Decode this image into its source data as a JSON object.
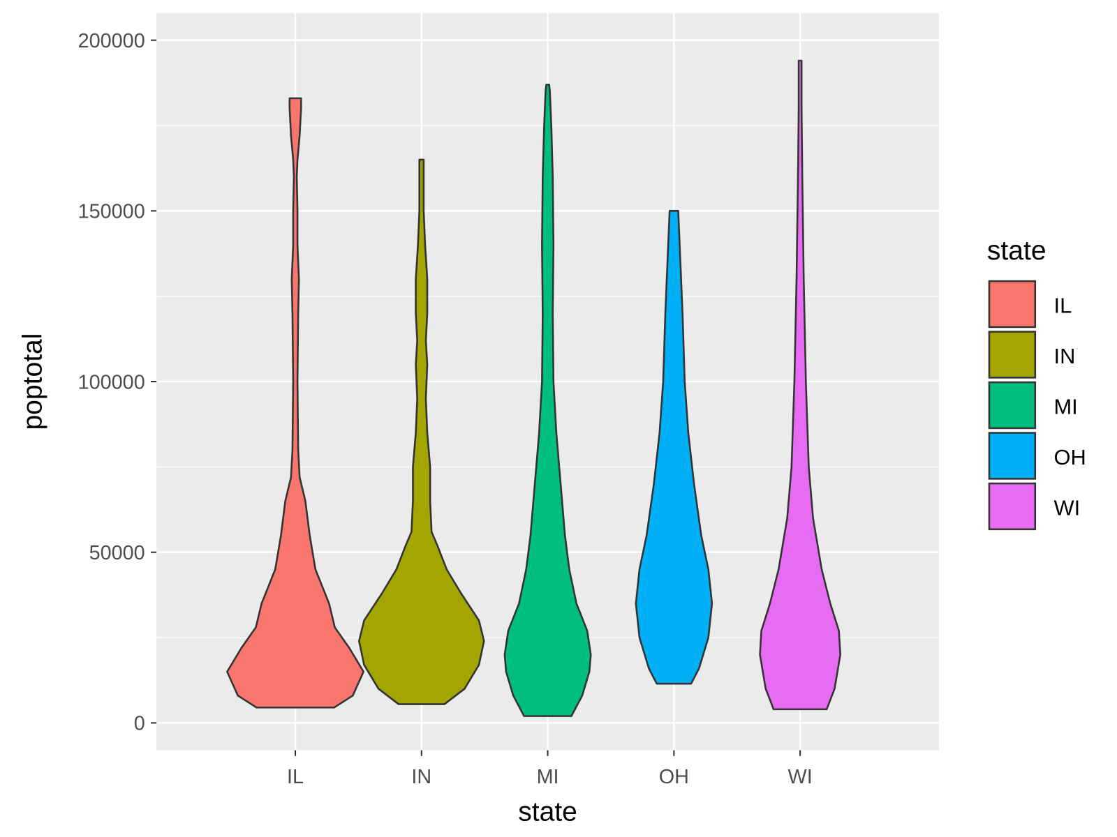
{
  "chart_data": {
    "type": "violin",
    "title": "",
    "xlabel": "state",
    "ylabel": "poptotal",
    "categories": [
      "IL",
      "IN",
      "MI",
      "OH",
      "WI"
    ],
    "ylim": [
      -8000,
      208000
    ],
    "y_ticks": [
      0,
      50000,
      100000,
      150000,
      200000
    ],
    "y_tick_labels": [
      "0",
      "50000",
      "100000",
      "150000",
      "200000"
    ],
    "grid": true,
    "legend": {
      "title": "state",
      "position": "right",
      "entries": [
        "IL",
        "IN",
        "MI",
        "OH",
        "WI"
      ]
    },
    "colors": {
      "IL": "#F8766D",
      "IN": "#A3A500",
      "MI": "#00BF7D",
      "OH": "#00B0F6",
      "WI": "#E76BF3"
    },
    "series": [
      {
        "name": "IL",
        "min": 4500,
        "max": 183000,
        "profile": [
          [
            4500,
            0.54
          ],
          [
            8000,
            0.8
          ],
          [
            15000,
            0.95
          ],
          [
            22000,
            0.75
          ],
          [
            28000,
            0.55
          ],
          [
            35000,
            0.47
          ],
          [
            45000,
            0.28
          ],
          [
            55000,
            0.2
          ],
          [
            65000,
            0.14
          ],
          [
            72000,
            0.06
          ],
          [
            80000,
            0.04
          ],
          [
            100000,
            0.03
          ],
          [
            120000,
            0.04
          ],
          [
            130000,
            0.05
          ],
          [
            140000,
            0.03
          ],
          [
            150000,
            0.03
          ],
          [
            160000,
            0.02
          ],
          [
            165000,
            0.03
          ],
          [
            172000,
            0.06
          ],
          [
            180000,
            0.08
          ],
          [
            183000,
            0.08
          ]
        ]
      },
      {
        "name": "IN",
        "min": 5500,
        "max": 165000,
        "profile": [
          [
            5500,
            0.32
          ],
          [
            10000,
            0.6
          ],
          [
            17000,
            0.8
          ],
          [
            24000,
            0.87
          ],
          [
            30000,
            0.8
          ],
          [
            38000,
            0.55
          ],
          [
            45000,
            0.35
          ],
          [
            52000,
            0.22
          ],
          [
            56000,
            0.14
          ],
          [
            65000,
            0.12
          ],
          [
            75000,
            0.12
          ],
          [
            85000,
            0.08
          ],
          [
            95000,
            0.06
          ],
          [
            105000,
            0.08
          ],
          [
            112000,
            0.06
          ],
          [
            120000,
            0.08
          ],
          [
            130000,
            0.08
          ],
          [
            140000,
            0.05
          ],
          [
            150000,
            0.03
          ],
          [
            160000,
            0.03
          ],
          [
            165000,
            0.03
          ]
        ]
      },
      {
        "name": "MI",
        "min": 2000,
        "max": 187000,
        "profile": [
          [
            2000,
            0.33
          ],
          [
            8000,
            0.48
          ],
          [
            15000,
            0.58
          ],
          [
            20000,
            0.6
          ],
          [
            27000,
            0.55
          ],
          [
            35000,
            0.4
          ],
          [
            45000,
            0.3
          ],
          [
            55000,
            0.24
          ],
          [
            70000,
            0.18
          ],
          [
            85000,
            0.12
          ],
          [
            100000,
            0.08
          ],
          [
            120000,
            0.07
          ],
          [
            140000,
            0.08
          ],
          [
            160000,
            0.07
          ],
          [
            175000,
            0.05
          ],
          [
            185000,
            0.03
          ],
          [
            187000,
            0.02
          ]
        ]
      },
      {
        "name": "OH",
        "min": 11500,
        "max": 150000,
        "profile": [
          [
            11500,
            0.24
          ],
          [
            16000,
            0.35
          ],
          [
            25000,
            0.48
          ],
          [
            35000,
            0.53
          ],
          [
            45000,
            0.48
          ],
          [
            55000,
            0.38
          ],
          [
            70000,
            0.28
          ],
          [
            85000,
            0.2
          ],
          [
            100000,
            0.15
          ],
          [
            120000,
            0.12
          ],
          [
            140000,
            0.08
          ],
          [
            150000,
            0.06
          ]
        ]
      },
      {
        "name": "WI",
        "min": 4000,
        "max": 194000,
        "profile": [
          [
            4000,
            0.37
          ],
          [
            10000,
            0.48
          ],
          [
            20000,
            0.56
          ],
          [
            27000,
            0.54
          ],
          [
            35000,
            0.42
          ],
          [
            45000,
            0.3
          ],
          [
            60000,
            0.18
          ],
          [
            75000,
            0.12
          ],
          [
            100000,
            0.08
          ],
          [
            130000,
            0.05
          ],
          [
            160000,
            0.03
          ],
          [
            180000,
            0.02
          ],
          [
            194000,
            0.02
          ]
        ]
      }
    ]
  }
}
